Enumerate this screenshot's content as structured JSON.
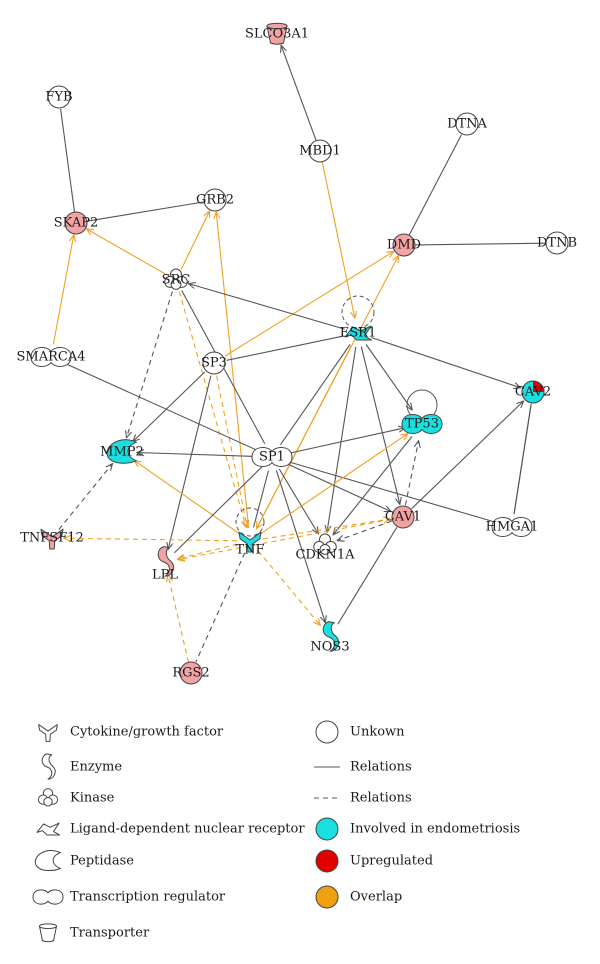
{
  "colors": {
    "endometriosis": "#19e0e0",
    "upregulated": "#e00000",
    "overlap": "#f0a010",
    "fold_pink": "#f2a3a3",
    "line": "#555555",
    "overlap_line": "#f0a020",
    "node_stroke": "#444444"
  },
  "network": {
    "nodes": [
      {
        "id": "SLCO3A1",
        "label": "SLCO3A1",
        "shape": "transporter",
        "color": "pink"
      },
      {
        "id": "FYB",
        "label": "FYB",
        "shape": "circle",
        "color": "white"
      },
      {
        "id": "MBD1",
        "label": "MBD1",
        "shape": "circle",
        "color": "white"
      },
      {
        "id": "DTNA",
        "label": "DTNA",
        "shape": "circle",
        "color": "white"
      },
      {
        "id": "GRB2",
        "label": "GRB2",
        "shape": "circle",
        "color": "white"
      },
      {
        "id": "SKAP2",
        "label": "SKAP2",
        "shape": "circle",
        "color": "pink"
      },
      {
        "id": "DMD",
        "label": "DMD",
        "shape": "circle",
        "color": "pink"
      },
      {
        "id": "DTNB",
        "label": "DTNB",
        "shape": "circle",
        "color": "white"
      },
      {
        "id": "SRC",
        "label": "SRC",
        "shape": "kinase",
        "color": "white"
      },
      {
        "id": "ESR1",
        "label": "ESR1",
        "shape": "nuclear-receptor",
        "color": "cyan"
      },
      {
        "id": "SMARCA4",
        "label": "SMARCA4",
        "shape": "transcription-regulator",
        "color": "white"
      },
      {
        "id": "SP3",
        "label": "SP3",
        "shape": "circle",
        "color": "white"
      },
      {
        "id": "CAV2",
        "label": "CAV2",
        "shape": "circle",
        "color": "cyan-red"
      },
      {
        "id": "TP53",
        "label": "TP53",
        "shape": "transcription-regulator",
        "color": "cyan"
      },
      {
        "id": "MMP2",
        "label": "MMP2",
        "shape": "peptidase",
        "color": "cyan"
      },
      {
        "id": "SP1",
        "label": "SP1",
        "shape": "transcription-regulator",
        "color": "white"
      },
      {
        "id": "CAV1",
        "label": "CAV1",
        "shape": "circle",
        "color": "pink"
      },
      {
        "id": "HMGA1",
        "label": "HMGA1",
        "shape": "transcription-regulator",
        "color": "white"
      },
      {
        "id": "TNFSF12",
        "label": "TNFSF12",
        "shape": "cytokine",
        "color": "pink"
      },
      {
        "id": "TNF",
        "label": "TNF",
        "shape": "cytokine",
        "color": "cyan"
      },
      {
        "id": "CDKN1A",
        "label": "CDKN1A",
        "shape": "kinase",
        "color": "white"
      },
      {
        "id": "LPL",
        "label": "LPL",
        "shape": "enzyme",
        "color": "pink"
      },
      {
        "id": "NOS3",
        "label": "NOS3",
        "shape": "enzyme",
        "color": "cyan"
      },
      {
        "id": "RGS2",
        "label": "RGS2",
        "shape": "circle",
        "color": "pink"
      }
    ],
    "edges": [
      {
        "from": "MBD1",
        "to": "SLCO3A1",
        "style": "solid",
        "color": "gray",
        "arrow": true
      },
      {
        "from": "SKAP2",
        "to": "FYB",
        "style": "solid",
        "color": "gray",
        "arrow": false
      },
      {
        "from": "DMD",
        "to": "DTNA",
        "style": "solid",
        "color": "gray",
        "arrow": false
      },
      {
        "from": "DMD",
        "to": "DTNB",
        "style": "solid",
        "color": "gray",
        "arrow": false
      },
      {
        "from": "SKAP2",
        "to": "GRB2",
        "style": "solid",
        "color": "gray",
        "arrow": false
      },
      {
        "from": "MBD1",
        "to": "ESR1",
        "style": "solid",
        "color": "orange",
        "arrow": true
      },
      {
        "from": "SRC",
        "to": "SKAP2",
        "style": "solid",
        "color": "orange",
        "arrow": true
      },
      {
        "from": "SMARCA4",
        "to": "SKAP2",
        "style": "solid",
        "color": "orange",
        "arrow": true
      },
      {
        "from": "SRC",
        "to": "GRB2",
        "style": "solid",
        "color": "orange",
        "arrow": true
      },
      {
        "from": "TNF",
        "to": "GRB2",
        "style": "solid",
        "color": "orange",
        "arrow": true
      },
      {
        "from": "SP3",
        "to": "DMD",
        "style": "solid",
        "color": "orange",
        "arrow": true
      },
      {
        "from": "TNF",
        "to": "DMD",
        "style": "solid",
        "color": "orange",
        "arrow": true
      },
      {
        "from": "ESR1",
        "to": "SRC",
        "style": "solid",
        "color": "gray",
        "arrow": true
      },
      {
        "from": "SRC",
        "to": "MMP2",
        "style": "dashed",
        "color": "gray",
        "arrow": true
      },
      {
        "from": "SRC",
        "to": "SP1",
        "style": "solid",
        "color": "gray",
        "arrow": false
      },
      {
        "from": "SRC",
        "to": "TNF",
        "style": "dashed",
        "color": "orange",
        "arrow": true
      },
      {
        "from": "SP3",
        "to": "ESR1",
        "style": "solid",
        "color": "gray",
        "arrow": false
      },
      {
        "from": "SP3",
        "to": "MMP2",
        "style": "solid",
        "color": "gray",
        "arrow": true
      },
      {
        "from": "SP3",
        "to": "LPL",
        "style": "solid",
        "color": "gray",
        "arrow": true
      },
      {
        "from": "SP3",
        "to": "TNF",
        "style": "dashed",
        "color": "orange",
        "arrow": true
      },
      {
        "from": "SMARCA4",
        "to": "SP1",
        "style": "solid",
        "color": "gray",
        "arrow": false
      },
      {
        "from": "ESR1",
        "to": "CAV2",
        "style": "solid",
        "color": "gray",
        "arrow": true
      },
      {
        "from": "ESR1",
        "to": "TP53",
        "style": "solid",
        "color": "gray",
        "arrow": true
      },
      {
        "from": "ESR1",
        "to": "CAV1",
        "style": "solid",
        "color": "gray",
        "arrow": true
      },
      {
        "from": "ESR1",
        "to": "CDKN1A",
        "style": "solid",
        "color": "gray",
        "arrow": true
      },
      {
        "from": "ESR1",
        "to": "TNF",
        "style": "solid",
        "color": "orange",
        "arrow": true
      },
      {
        "from": "ESR1",
        "to": "SP1",
        "style": "solid",
        "color": "gray",
        "arrow": false
      },
      {
        "from": "SP1",
        "to": "MMP2",
        "style": "solid",
        "color": "gray",
        "arrow": true
      },
      {
        "from": "SP1",
        "to": "TP53",
        "style": "solid",
        "color": "gray",
        "arrow": true
      },
      {
        "from": "SP1",
        "to": "CAV1",
        "style": "solid",
        "color": "gray",
        "arrow": true
      },
      {
        "from": "SP1",
        "to": "HMGA1",
        "style": "solid",
        "color": "gray",
        "arrow": false
      },
      {
        "from": "SP1",
        "to": "NOS3",
        "style": "solid",
        "color": "gray",
        "arrow": true
      },
      {
        "from": "SP1",
        "to": "CDKN1A",
        "style": "solid",
        "color": "gray",
        "arrow": true
      },
      {
        "from": "TP53",
        "to": "CDKN1A",
        "style": "solid",
        "color": "gray",
        "arrow": true
      },
      {
        "from": "CAV1",
        "to": "TP53",
        "style": "dashed",
        "color": "gray",
        "arrow": true
      },
      {
        "from": "CAV1",
        "to": "CAV2",
        "style": "solid",
        "color": "gray",
        "arrow": true
      },
      {
        "from": "CAV1",
        "to": "NOS3",
        "style": "solid",
        "color": "gray",
        "arrow": false
      },
      {
        "from": "HMGA1",
        "to": "CAV2",
        "style": "solid",
        "color": "gray",
        "arrow": false
      },
      {
        "from": "CAV2",
        "to": "HMGA1",
        "style": "solid",
        "color": "gray",
        "arrow": false
      },
      {
        "from": "CAV1",
        "to": "CDKN1A",
        "style": "dashed",
        "color": "gray",
        "arrow": true
      },
      {
        "from": "TNF",
        "to": "MMP2",
        "style": "solid",
        "color": "orange",
        "arrow": true
      },
      {
        "from": "TNF",
        "to": "TNFSF12",
        "style": "dashed",
        "color": "orange",
        "arrow": true
      },
      {
        "from": "TNF",
        "to": "CAV1",
        "style": "dashed",
        "color": "orange",
        "arrow": true
      },
      {
        "from": "TNF",
        "to": "TP53",
        "style": "solid",
        "color": "orange",
        "arrow": true
      },
      {
        "from": "TNF",
        "to": "NOS3",
        "style": "dashed",
        "color": "orange",
        "arrow": true
      },
      {
        "from": "TNF",
        "to": "LPL",
        "style": "dashed",
        "color": "orange",
        "arrow": true
      },
      {
        "from": "TNF",
        "to": "RGS2",
        "style": "dashed",
        "color": "gray",
        "arrow": false
      },
      {
        "from": "RGS2",
        "to": "LPL",
        "style": "dashed",
        "color": "orange",
        "arrow": true
      },
      {
        "from": "TNFSF12",
        "to": "MMP2",
        "style": "dashed",
        "color": "gray",
        "arrow": true
      },
      {
        "from": "CAV1",
        "to": "LPL",
        "style": "dashed",
        "color": "orange",
        "arrow": true
      },
      {
        "from": "SP1",
        "to": "TNF",
        "style": "solid",
        "color": "gray",
        "arrow": false
      },
      {
        "from": "SP1",
        "to": "LPL",
        "style": "solid",
        "color": "gray",
        "arrow": false
      }
    ]
  },
  "legend": {
    "shapes": [
      {
        "icon": "cytokine",
        "label": "Cytokine/growth factor"
      },
      {
        "icon": "enzyme",
        "label": "Enzyme"
      },
      {
        "icon": "kinase",
        "label": "Kinase"
      },
      {
        "icon": "nuclear-receptor",
        "label": "Ligand-dependent nuclear receptor"
      },
      {
        "icon": "peptidase",
        "label": "Peptidase"
      },
      {
        "icon": "transcription-regulator",
        "label": "Transcription regulator"
      },
      {
        "icon": "transporter",
        "label": "Transporter"
      }
    ],
    "other": [
      {
        "icon": "circle",
        "label": "Unkown"
      },
      {
        "icon": "solid-line",
        "label": "Relations"
      },
      {
        "icon": "dashed-line",
        "label": "Relations"
      },
      {
        "icon": "cyan-dot",
        "label": "Involved in endometriosis"
      },
      {
        "icon": "red-dot",
        "label": "Upregulated"
      },
      {
        "icon": "orange-dot",
        "label": "Overlap"
      }
    ]
  }
}
